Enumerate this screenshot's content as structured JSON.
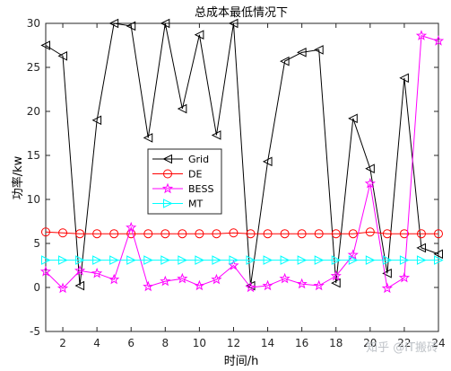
{
  "chart_data": {
    "type": "line",
    "title": "总成本最低情况下",
    "xlabel": "时间/h",
    "ylabel": "功率/kw",
    "xlim": [
      1,
      24
    ],
    "ylim": [
      -5,
      30
    ],
    "xticks": [
      2,
      4,
      6,
      8,
      10,
      12,
      14,
      16,
      18,
      20,
      22,
      24
    ],
    "yticks": [
      -5,
      0,
      5,
      10,
      15,
      20,
      25,
      30
    ],
    "grid": false,
    "legend_position": "center-left",
    "x": [
      1,
      2,
      3,
      4,
      5,
      6,
      7,
      8,
      9,
      10,
      11,
      12,
      13,
      14,
      15,
      16,
      17,
      18,
      19,
      20,
      21,
      22,
      23,
      24
    ],
    "series": [
      {
        "name": "Grid",
        "color": "#000000",
        "marker": "triangle-left",
        "values": [
          27.5,
          26.3,
          0.2,
          19.0,
          30.0,
          29.7,
          17.0,
          30.0,
          20.3,
          28.7,
          17.3,
          30.0,
          0.2,
          14.3,
          25.7,
          26.7,
          27.0,
          0.5,
          19.2,
          13.5,
          1.6,
          23.8,
          4.5,
          3.8
        ]
      },
      {
        "name": "DE",
        "color": "#ff0000",
        "marker": "circle",
        "values": [
          6.3,
          6.2,
          6.1,
          6.1,
          6.1,
          6.1,
          6.1,
          6.1,
          6.1,
          6.1,
          6.1,
          6.2,
          6.1,
          6.1,
          6.1,
          6.1,
          6.1,
          6.1,
          6.1,
          6.3,
          6.1,
          6.1,
          6.1,
          6.1
        ]
      },
      {
        "name": "BESS",
        "color": "#ff00ff",
        "marker": "pentagram",
        "values": [
          1.8,
          -0.1,
          1.9,
          1.6,
          0.9,
          6.8,
          0.1,
          0.7,
          1.0,
          0.2,
          0.9,
          2.5,
          0.0,
          0.2,
          1.0,
          0.4,
          0.2,
          1.3,
          3.7,
          11.8,
          -0.1,
          1.1,
          28.6,
          28.0
        ]
      },
      {
        "name": "MT",
        "color": "#00ffff",
        "marker": "triangle-right",
        "values": [
          3.1,
          3.1,
          3.1,
          3.1,
          3.1,
          3.1,
          3.1,
          3.1,
          3.1,
          3.1,
          3.1,
          3.1,
          3.1,
          3.1,
          3.1,
          3.1,
          3.1,
          3.1,
          3.1,
          3.1,
          3.1,
          3.1,
          3.1,
          3.1
        ]
      }
    ]
  },
  "watermark": "知乎 @IT搬砖"
}
